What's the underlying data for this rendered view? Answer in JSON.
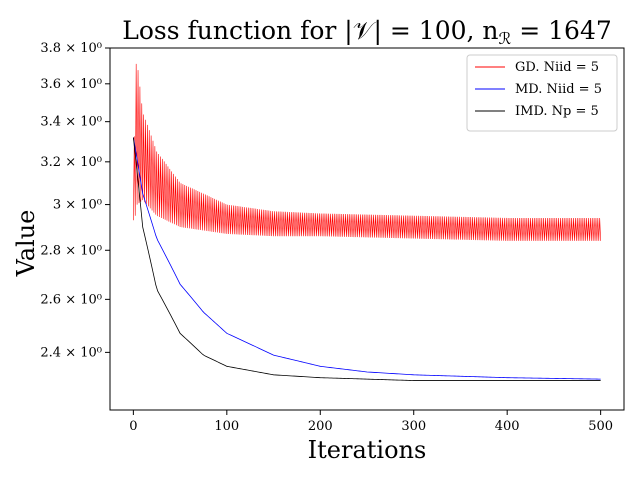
{
  "chart_data": {
    "type": "line",
    "title": "Loss function for |𝒱| = 100, n",
    "title_sub": "ℛ",
    "title_tail": " = 1647",
    "xlabel": "Iterations",
    "ylabel": "Value",
    "xlim": [
      -25,
      525
    ],
    "ylim": [
      2.2,
      3.8
    ],
    "yscale": "log",
    "xticks": [
      0,
      100,
      200,
      300,
      400,
      500
    ],
    "xtick_labels": [
      "0",
      "100",
      "200",
      "300",
      "400",
      "500"
    ],
    "yticks": [
      2.4,
      2.6,
      2.8,
      3.0,
      3.2,
      3.4,
      3.6,
      3.8
    ],
    "ytick_labels": [
      "2.4 × 10⁰",
      "2.6 × 10⁰",
      "2.8 × 10⁰",
      "3 × 10⁰",
      "3.2 × 10⁰",
      "3.4 × 10⁰",
      "3.6 × 10⁰",
      "3.8 × 10⁰"
    ],
    "grid": false,
    "legend_position": "top-right",
    "series": [
      {
        "name": "GD. Niid =    5",
        "color": "#ff0000",
        "style": "oscillating",
        "x": [
          0,
          2,
          4,
          10,
          25,
          50,
          100,
          150,
          200,
          300,
          400,
          500
        ],
        "upper": [
          2.95,
          3.7,
          3.72,
          3.45,
          3.25,
          3.1,
          3.0,
          2.97,
          2.96,
          2.95,
          2.94,
          2.94
        ],
        "lower": [
          2.93,
          2.95,
          3.0,
          3.02,
          2.95,
          2.9,
          2.87,
          2.86,
          2.86,
          2.85,
          2.84,
          2.84
        ]
      },
      {
        "name": "MD. Niid =    5",
        "color": "#0000ff",
        "style": "line",
        "x": [
          0,
          10,
          25,
          50,
          75,
          100,
          150,
          200,
          250,
          300,
          400,
          500
        ],
        "values": [
          3.32,
          3.05,
          2.85,
          2.66,
          2.55,
          2.47,
          2.39,
          2.35,
          2.33,
          2.32,
          2.31,
          2.305
        ]
      },
      {
        "name": "IMD. Np =    5",
        "color": "#000000",
        "style": "line",
        "x": [
          0,
          10,
          25,
          50,
          75,
          100,
          150,
          200,
          250,
          300,
          400,
          500
        ],
        "values": [
          3.32,
          2.9,
          2.64,
          2.47,
          2.39,
          2.35,
          2.32,
          2.31,
          2.305,
          2.3,
          2.3,
          2.3
        ]
      }
    ]
  }
}
